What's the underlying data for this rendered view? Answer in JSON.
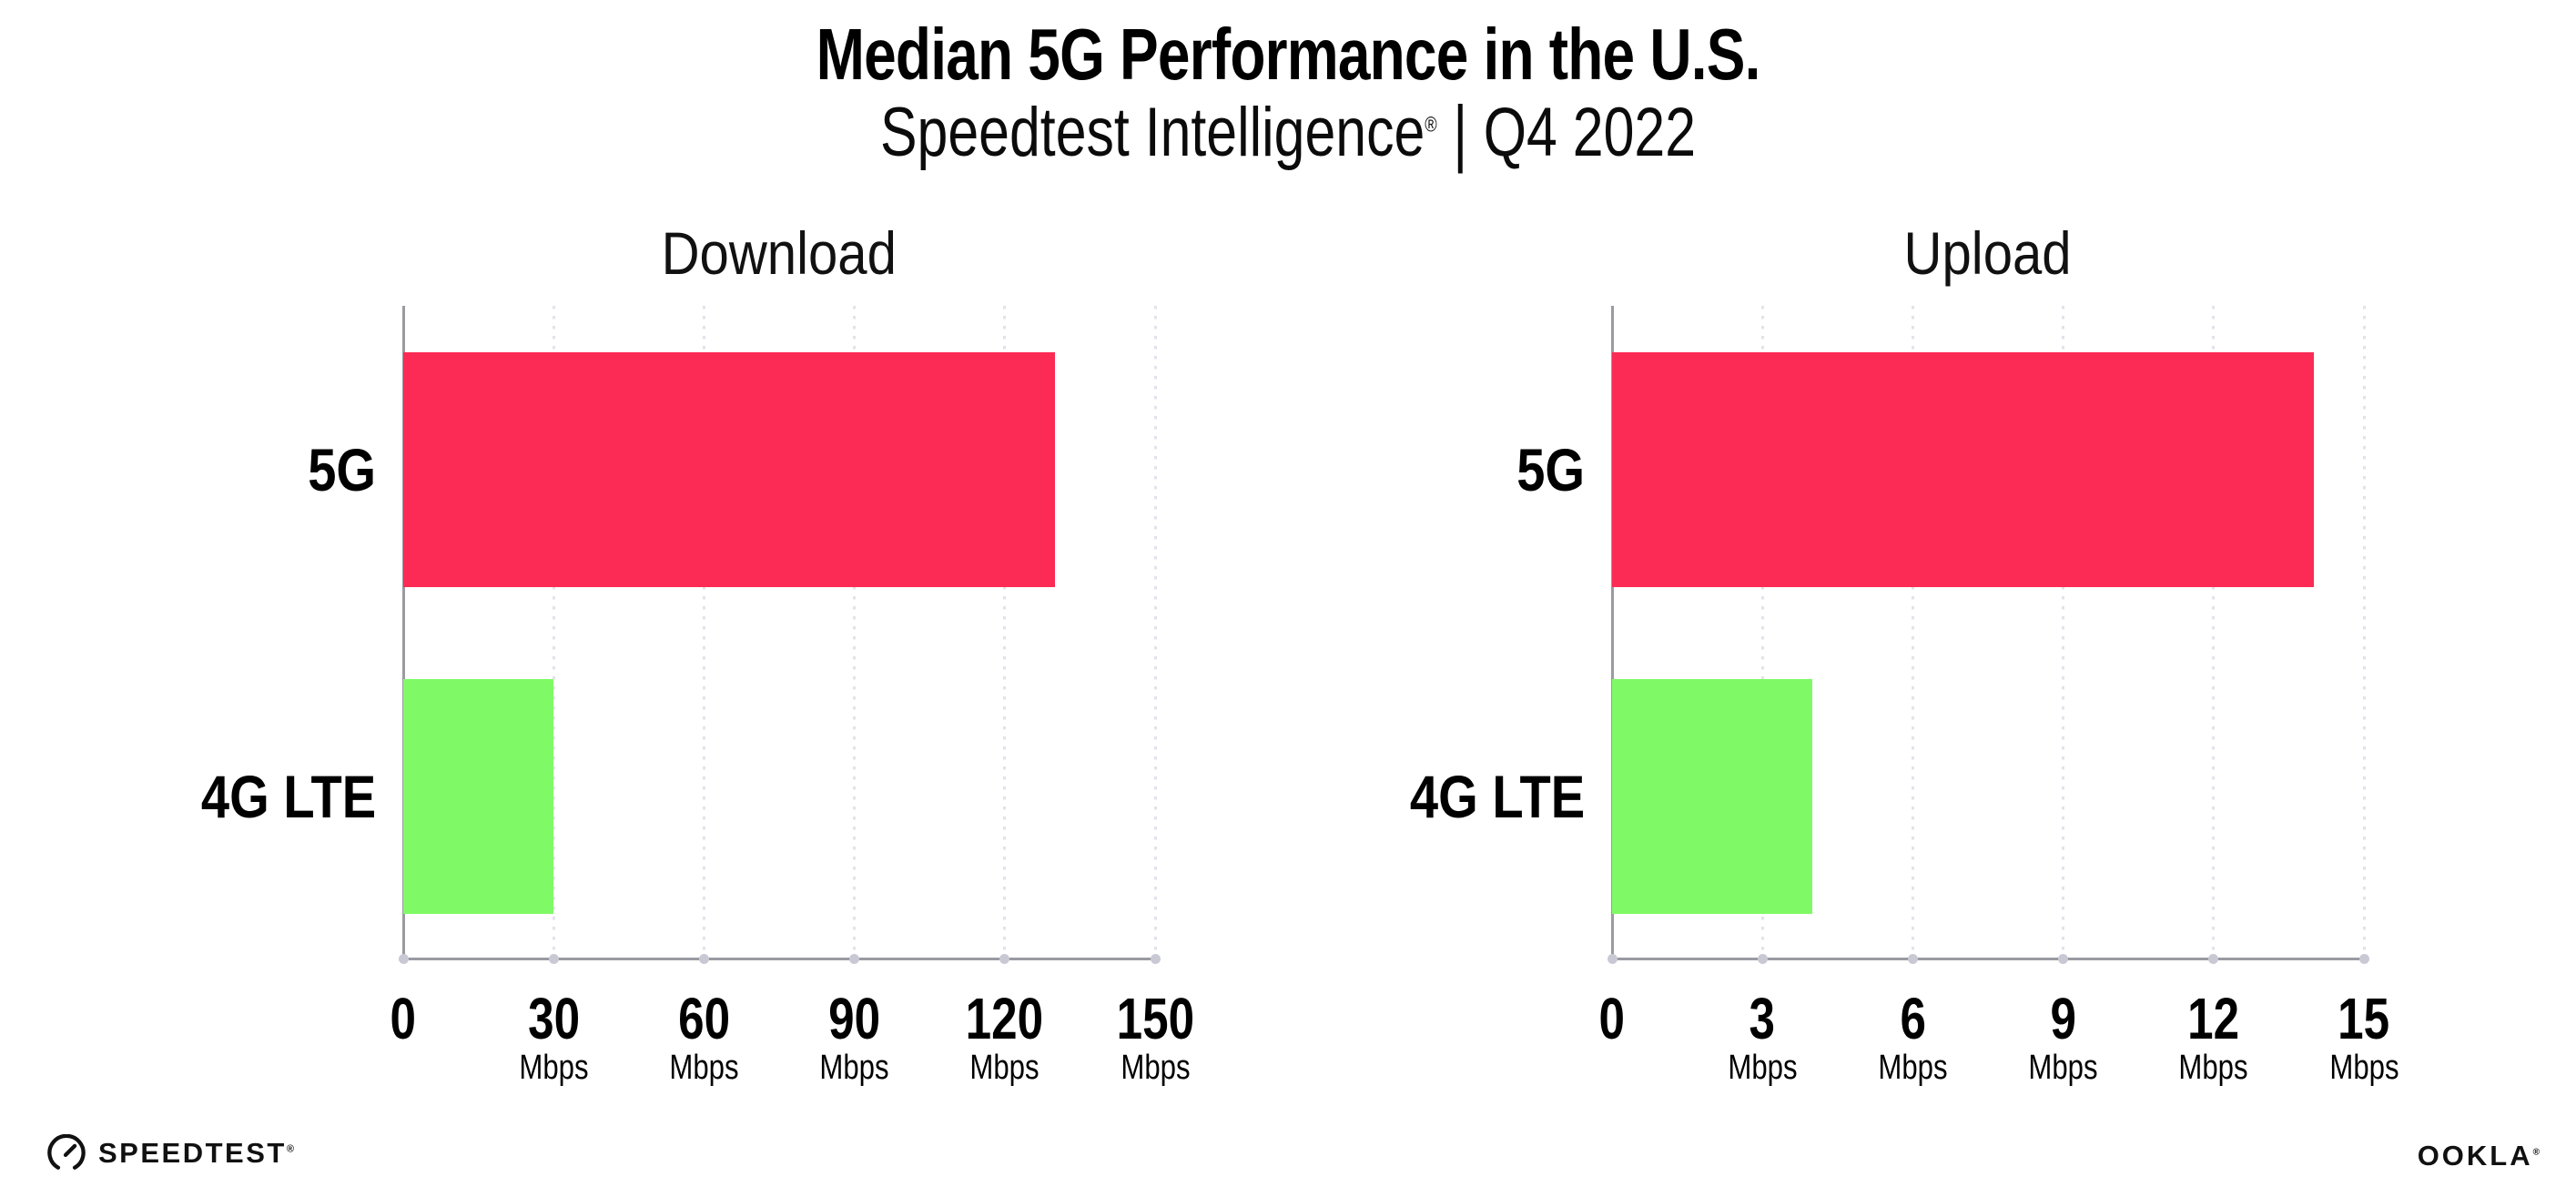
{
  "header": {
    "title": "Median 5G Performance in the U.S.",
    "subtitle_brand": "Speedtest Intelligence",
    "subtitle_mark": "®",
    "subtitle_separator": "|",
    "subtitle_period": "Q4 2022"
  },
  "chart_data": [
    {
      "type": "bar",
      "orientation": "horizontal",
      "title": "Download",
      "categories": [
        "5G",
        "4G LTE"
      ],
      "values": [
        130,
        30
      ],
      "unit": "Mbps",
      "xlim": [
        0,
        150
      ],
      "xticks": [
        0,
        30,
        60,
        90,
        120,
        150
      ],
      "xtick_unit_label": "Mbps",
      "grid": "dotted-vertical",
      "legend": "none",
      "bar_colors": [
        "#FB2B55",
        "#7FFA66"
      ]
    },
    {
      "type": "bar",
      "orientation": "horizontal",
      "title": "Upload",
      "categories": [
        "5G",
        "4G LTE"
      ],
      "values": [
        14,
        4
      ],
      "unit": "Mbps",
      "xlim": [
        0,
        15
      ],
      "xticks": [
        0,
        3,
        6,
        9,
        12,
        15
      ],
      "xtick_unit_label": "Mbps",
      "grid": "dotted-vertical",
      "legend": "none",
      "bar_colors": [
        "#FB2B55",
        "#7FFA66"
      ]
    }
  ],
  "colors": {
    "bar_5g": "#FB2B55",
    "bar_4g_lte": "#7FFA66",
    "axis_line": "#9A9AA2",
    "tick_dot": "#C9C9D5",
    "gridline": "#E3E2EC",
    "text": "#000000",
    "background": "#FFFFFF"
  },
  "footer": {
    "speedtest_label": "SPEEDTEST",
    "speedtest_mark": "®",
    "ookla_label": "OOKLA",
    "ookla_mark": "®"
  }
}
